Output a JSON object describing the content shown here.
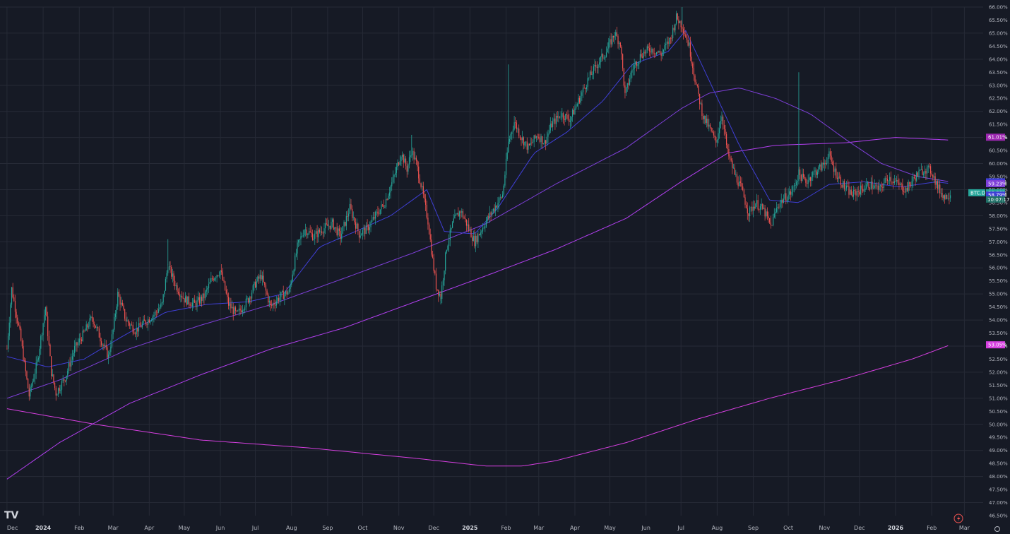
{
  "chart_data": {
    "type": "candlestick",
    "symbol_label": "BTC.D",
    "unit": "%",
    "ylim": [
      46.5,
      66.0
    ],
    "y_ticks": [
      "66.00%",
      "65.50%",
      "65.00%",
      "64.50%",
      "64.00%",
      "63.50%",
      "63.00%",
      "62.50%",
      "62.00%",
      "61.50%",
      "61.00%",
      "60.50%",
      "60.00%",
      "59.50%",
      "59.00%",
      "58.50%",
      "58.00%",
      "57.50%",
      "57.00%",
      "56.50%",
      "56.00%",
      "55.50%",
      "55.00%",
      "54.50%",
      "54.00%",
      "53.50%",
      "53.00%",
      "52.50%",
      "52.00%",
      "51.50%",
      "51.00%",
      "50.50%",
      "50.00%",
      "49.50%",
      "49.00%",
      "48.50%",
      "48.00%",
      "47.50%",
      "47.00%",
      "46.50%"
    ],
    "x_ticks": [
      "Dec",
      "2024",
      "Feb",
      "Mar",
      "Apr",
      "May",
      "Jun",
      "Jul",
      "Aug",
      "Sep",
      "Oct",
      "Nov",
      "Dec",
      "2025",
      "Feb",
      "Mar",
      "Apr",
      "May",
      "Jun",
      "Jul",
      "Aug",
      "Sep",
      "Oct",
      "Nov",
      "Dec",
      "2026",
      "Feb",
      "Mar"
    ],
    "grid": true,
    "colors": {
      "background": "#161a25",
      "up": "#26a69a",
      "down": "#ef5350",
      "ma_short": "#3f3fd6",
      "ma_mid": "#7e3fd9",
      "ma_long": "#b23ff0",
      "ma_200w": "#d63fe0"
    },
    "price_path": [
      [
        "2023-12-01",
        52.9
      ],
      [
        "2023-12-05",
        55.2
      ],
      [
        "2023-12-12",
        53.5
      ],
      [
        "2023-12-20",
        51.1
      ],
      [
        "2023-12-27",
        52.4
      ],
      [
        "2024-01-03",
        54.5
      ],
      [
        "2024-01-08",
        52.0
      ],
      [
        "2024-01-12",
        51.2
      ],
      [
        "2024-01-20",
        51.8
      ],
      [
        "2024-01-28",
        52.9
      ],
      [
        "2024-02-05",
        53.5
      ],
      [
        "2024-02-12",
        54.1
      ],
      [
        "2024-02-20",
        53.2
      ],
      [
        "2024-02-26",
        52.6
      ],
      [
        "2024-03-01",
        53.6
      ],
      [
        "2024-03-05",
        55.0
      ],
      [
        "2024-03-12",
        54.0
      ],
      [
        "2024-03-20",
        53.6
      ],
      [
        "2024-03-28",
        53.9
      ],
      [
        "2024-04-05",
        54.2
      ],
      [
        "2024-04-12",
        54.6
      ],
      [
        "2024-04-17",
        56.1
      ],
      [
        "2024-04-24",
        55.3
      ],
      [
        "2024-05-01",
        54.8
      ],
      [
        "2024-05-10",
        54.6
      ],
      [
        "2024-05-18",
        54.9
      ],
      [
        "2024-05-25",
        55.6
      ],
      [
        "2024-06-01",
        55.9
      ],
      [
        "2024-06-08",
        54.6
      ],
      [
        "2024-06-15",
        54.2
      ],
      [
        "2024-06-25",
        54.8
      ],
      [
        "2024-07-01",
        55.4
      ],
      [
        "2024-07-06",
        55.7
      ],
      [
        "2024-07-14",
        54.5
      ],
      [
        "2024-07-22",
        54.9
      ],
      [
        "2024-07-30",
        55.1
      ],
      [
        "2024-08-06",
        56.8
      ],
      [
        "2024-08-12",
        57.5
      ],
      [
        "2024-08-20",
        57.2
      ],
      [
        "2024-08-28",
        57.5
      ],
      [
        "2024-09-05",
        57.7
      ],
      [
        "2024-09-12",
        57.2
      ],
      [
        "2024-09-20",
        58.3
      ],
      [
        "2024-09-28",
        57.3
      ],
      [
        "2024-10-05",
        57.5
      ],
      [
        "2024-10-12",
        58.0
      ],
      [
        "2024-10-20",
        58.5
      ],
      [
        "2024-10-28",
        59.5
      ],
      [
        "2024-11-03",
        60.4
      ],
      [
        "2024-11-08",
        59.8
      ],
      [
        "2024-11-12",
        60.5
      ],
      [
        "2024-11-16",
        60.0
      ],
      [
        "2024-11-20",
        59.2
      ],
      [
        "2024-11-26",
        57.8
      ],
      [
        "2024-11-30",
        56.3
      ],
      [
        "2024-12-03",
        55.3
      ],
      [
        "2024-12-07",
        54.9
      ],
      [
        "2024-12-12",
        56.8
      ],
      [
        "2024-12-18",
        57.8
      ],
      [
        "2024-12-24",
        58.2
      ],
      [
        "2024-12-30",
        57.6
      ],
      [
        "2025-01-05",
        57.0
      ],
      [
        "2025-01-10",
        57.4
      ],
      [
        "2025-01-15",
        57.8
      ],
      [
        "2025-01-22",
        58.3
      ],
      [
        "2025-01-29",
        58.8
      ],
      [
        "2025-02-03",
        60.8
      ],
      [
        "2025-02-08",
        61.6
      ],
      [
        "2025-02-14",
        61.0
      ],
      [
        "2025-02-20",
        60.6
      ],
      [
        "2025-02-28",
        61.1
      ],
      [
        "2025-03-06",
        60.8
      ],
      [
        "2025-03-12",
        61.5
      ],
      [
        "2025-03-20",
        61.9
      ],
      [
        "2025-03-28",
        61.7
      ],
      [
        "2025-04-05",
        62.5
      ],
      [
        "2025-04-12",
        63.2
      ],
      [
        "2025-04-20",
        63.8
      ],
      [
        "2025-04-28",
        64.3
      ],
      [
        "2025-05-05",
        65.0
      ],
      [
        "2025-05-10",
        64.6
      ],
      [
        "2025-05-14",
        62.6
      ],
      [
        "2025-05-20",
        63.6
      ],
      [
        "2025-05-28",
        64.2
      ],
      [
        "2025-06-05",
        64.4
      ],
      [
        "2025-06-14",
        64.2
      ],
      [
        "2025-06-22",
        64.8
      ],
      [
        "2025-06-27",
        65.6
      ],
      [
        "2025-07-02",
        65.3
      ],
      [
        "2025-07-08",
        64.5
      ],
      [
        "2025-07-14",
        63.0
      ],
      [
        "2025-07-20",
        61.8
      ],
      [
        "2025-07-26",
        61.3
      ],
      [
        "2025-07-31",
        60.8
      ],
      [
        "2025-08-05",
        61.9
      ],
      [
        "2025-08-10",
        60.4
      ],
      [
        "2025-08-16",
        59.6
      ],
      [
        "2025-08-22",
        59.0
      ],
      [
        "2025-08-28",
        58.1
      ],
      [
        "2025-09-03",
        58.5
      ],
      [
        "2025-09-10",
        58.2
      ],
      [
        "2025-09-16",
        57.6
      ],
      [
        "2025-09-22",
        58.4
      ],
      [
        "2025-09-28",
        58.7
      ],
      [
        "2025-10-04",
        58.9
      ],
      [
        "2025-10-10",
        59.6
      ],
      [
        "2025-10-16",
        59.3
      ],
      [
        "2025-10-22",
        59.6
      ],
      [
        "2025-10-30",
        59.9
      ],
      [
        "2025-11-05",
        60.3
      ],
      [
        "2025-11-10",
        59.7
      ],
      [
        "2025-11-18",
        59.1
      ],
      [
        "2025-11-25",
        58.8
      ],
      [
        "2025-12-02",
        59.0
      ],
      [
        "2025-12-10",
        59.2
      ],
      [
        "2025-12-18",
        59.0
      ],
      [
        "2025-12-26",
        59.5
      ],
      [
        "2026-01-03",
        59.2
      ],
      [
        "2026-01-10",
        59.0
      ],
      [
        "2026-01-18",
        59.5
      ],
      [
        "2026-01-26",
        59.8
      ],
      [
        "2026-02-01",
        59.7
      ],
      [
        "2026-02-06",
        59.1
      ],
      [
        "2026-02-12",
        58.7
      ],
      [
        "2026-02-17",
        58.88
      ]
    ],
    "ma_short_path": [
      [
        "2023-12-01",
        52.6
      ],
      [
        "2024-01-05",
        52.2
      ],
      [
        "2024-02-05",
        52.5
      ],
      [
        "2024-03-10",
        53.4
      ],
      [
        "2024-04-15",
        54.3
      ],
      [
        "2024-05-20",
        54.6
      ],
      [
        "2024-06-25",
        54.7
      ],
      [
        "2024-07-25",
        55.0
      ],
      [
        "2024-08-25",
        56.8
      ],
      [
        "2024-09-25",
        57.4
      ],
      [
        "2024-10-25",
        58.0
      ],
      [
        "2024-11-25",
        59.0
      ],
      [
        "2024-12-10",
        57.4
      ],
      [
        "2025-01-05",
        57.3
      ],
      [
        "2025-01-25",
        58.3
      ],
      [
        "2025-02-25",
        60.4
      ],
      [
        "2025-03-25",
        61.2
      ],
      [
        "2025-04-25",
        62.4
      ],
      [
        "2025-05-20",
        63.8
      ],
      [
        "2025-06-20",
        64.3
      ],
      [
        "2025-07-05",
        65.1
      ],
      [
        "2025-07-25",
        63.2
      ],
      [
        "2025-08-20",
        60.7
      ],
      [
        "2025-09-15",
        58.6
      ],
      [
        "2025-10-10",
        58.5
      ],
      [
        "2025-11-05",
        59.2
      ],
      [
        "2025-12-05",
        59.3
      ],
      [
        "2026-01-05",
        59.1
      ],
      [
        "2026-02-05",
        59.3
      ],
      [
        "2026-02-17",
        59.23
      ]
    ],
    "ma_mid_path": [
      [
        "2023-12-01",
        51.0
      ],
      [
        "2024-01-15",
        51.7
      ],
      [
        "2024-03-15",
        52.9
      ],
      [
        "2024-05-15",
        53.8
      ],
      [
        "2024-07-15",
        54.6
      ],
      [
        "2024-09-15",
        55.6
      ],
      [
        "2024-11-15",
        56.6
      ],
      [
        "2025-01-15",
        57.7
      ],
      [
        "2025-03-15",
        59.2
      ],
      [
        "2025-05-15",
        60.6
      ],
      [
        "2025-07-01",
        62.1
      ],
      [
        "2025-07-25",
        62.7
      ],
      [
        "2025-08-20",
        62.9
      ],
      [
        "2025-09-20",
        62.5
      ],
      [
        "2025-10-20",
        61.9
      ],
      [
        "2025-11-20",
        60.9
      ],
      [
        "2025-12-20",
        60.0
      ],
      [
        "2026-01-20",
        59.5
      ],
      [
        "2026-02-17",
        59.3
      ]
    ],
    "ma_long_path": [
      [
        "2023-12-01",
        47.9
      ],
      [
        "2024-01-15",
        49.3
      ],
      [
        "2024-03-15",
        50.8
      ],
      [
        "2024-05-15",
        51.9
      ],
      [
        "2024-07-15",
        52.9
      ],
      [
        "2024-09-15",
        53.7
      ],
      [
        "2024-11-15",
        54.7
      ],
      [
        "2025-01-15",
        55.7
      ],
      [
        "2025-03-15",
        56.7
      ],
      [
        "2025-05-15",
        57.9
      ],
      [
        "2025-07-01",
        59.3
      ],
      [
        "2025-08-10",
        60.4
      ],
      [
        "2025-09-20",
        60.7
      ],
      [
        "2025-11-20",
        60.8
      ],
      [
        "2026-01-01",
        61.0
      ],
      [
        "2026-02-17",
        60.9
      ]
    ],
    "ma_200w_path": [
      [
        "2023-12-01",
        50.6
      ],
      [
        "2024-02-15",
        50.0
      ],
      [
        "2024-05-15",
        49.4
      ],
      [
        "2024-08-15",
        49.1
      ],
      [
        "2024-11-15",
        48.7
      ],
      [
        "2025-01-15",
        48.4
      ],
      [
        "2025-02-15",
        48.4
      ],
      [
        "2025-03-15",
        48.6
      ],
      [
        "2025-05-15",
        49.3
      ],
      [
        "2025-07-15",
        50.2
      ],
      [
        "2025-09-15",
        51.0
      ],
      [
        "2025-11-15",
        51.7
      ],
      [
        "2026-01-15",
        52.5
      ],
      [
        "2026-02-17",
        53.05
      ]
    ],
    "price_badges": [
      {
        "label": "61.01%",
        "value": 61.01,
        "color": "#9c27b0"
      },
      {
        "label": "59.30%",
        "value": 59.3,
        "color": "#3f3fd6"
      },
      {
        "label": "59.23%",
        "value": 59.23,
        "color": "#7e3fd9"
      },
      {
        "label": "58.88%",
        "value": 58.88,
        "color": "#26a69a"
      },
      {
        "label": "58.79%",
        "value": 58.79,
        "color": "#3f3fd6"
      },
      {
        "label": "53.05%",
        "value": 53.05,
        "color": "#d63fe0"
      }
    ],
    "current": {
      "symbol": "BTC.D",
      "price": "58.88%",
      "countdown": "10:07:17"
    },
    "spikes": [
      {
        "date": "2025-02-03",
        "high": 63.8
      },
      {
        "date": "2025-10-10",
        "high": 63.5
      },
      {
        "date": "2024-04-17",
        "high": 57.1
      },
      {
        "date": "2024-11-12",
        "high": 61.1
      },
      {
        "date": "2025-07-02",
        "high": 66.0
      },
      {
        "date": "2024-12-07",
        "high": 54.6
      }
    ]
  },
  "ui": {
    "logo": "TV"
  }
}
